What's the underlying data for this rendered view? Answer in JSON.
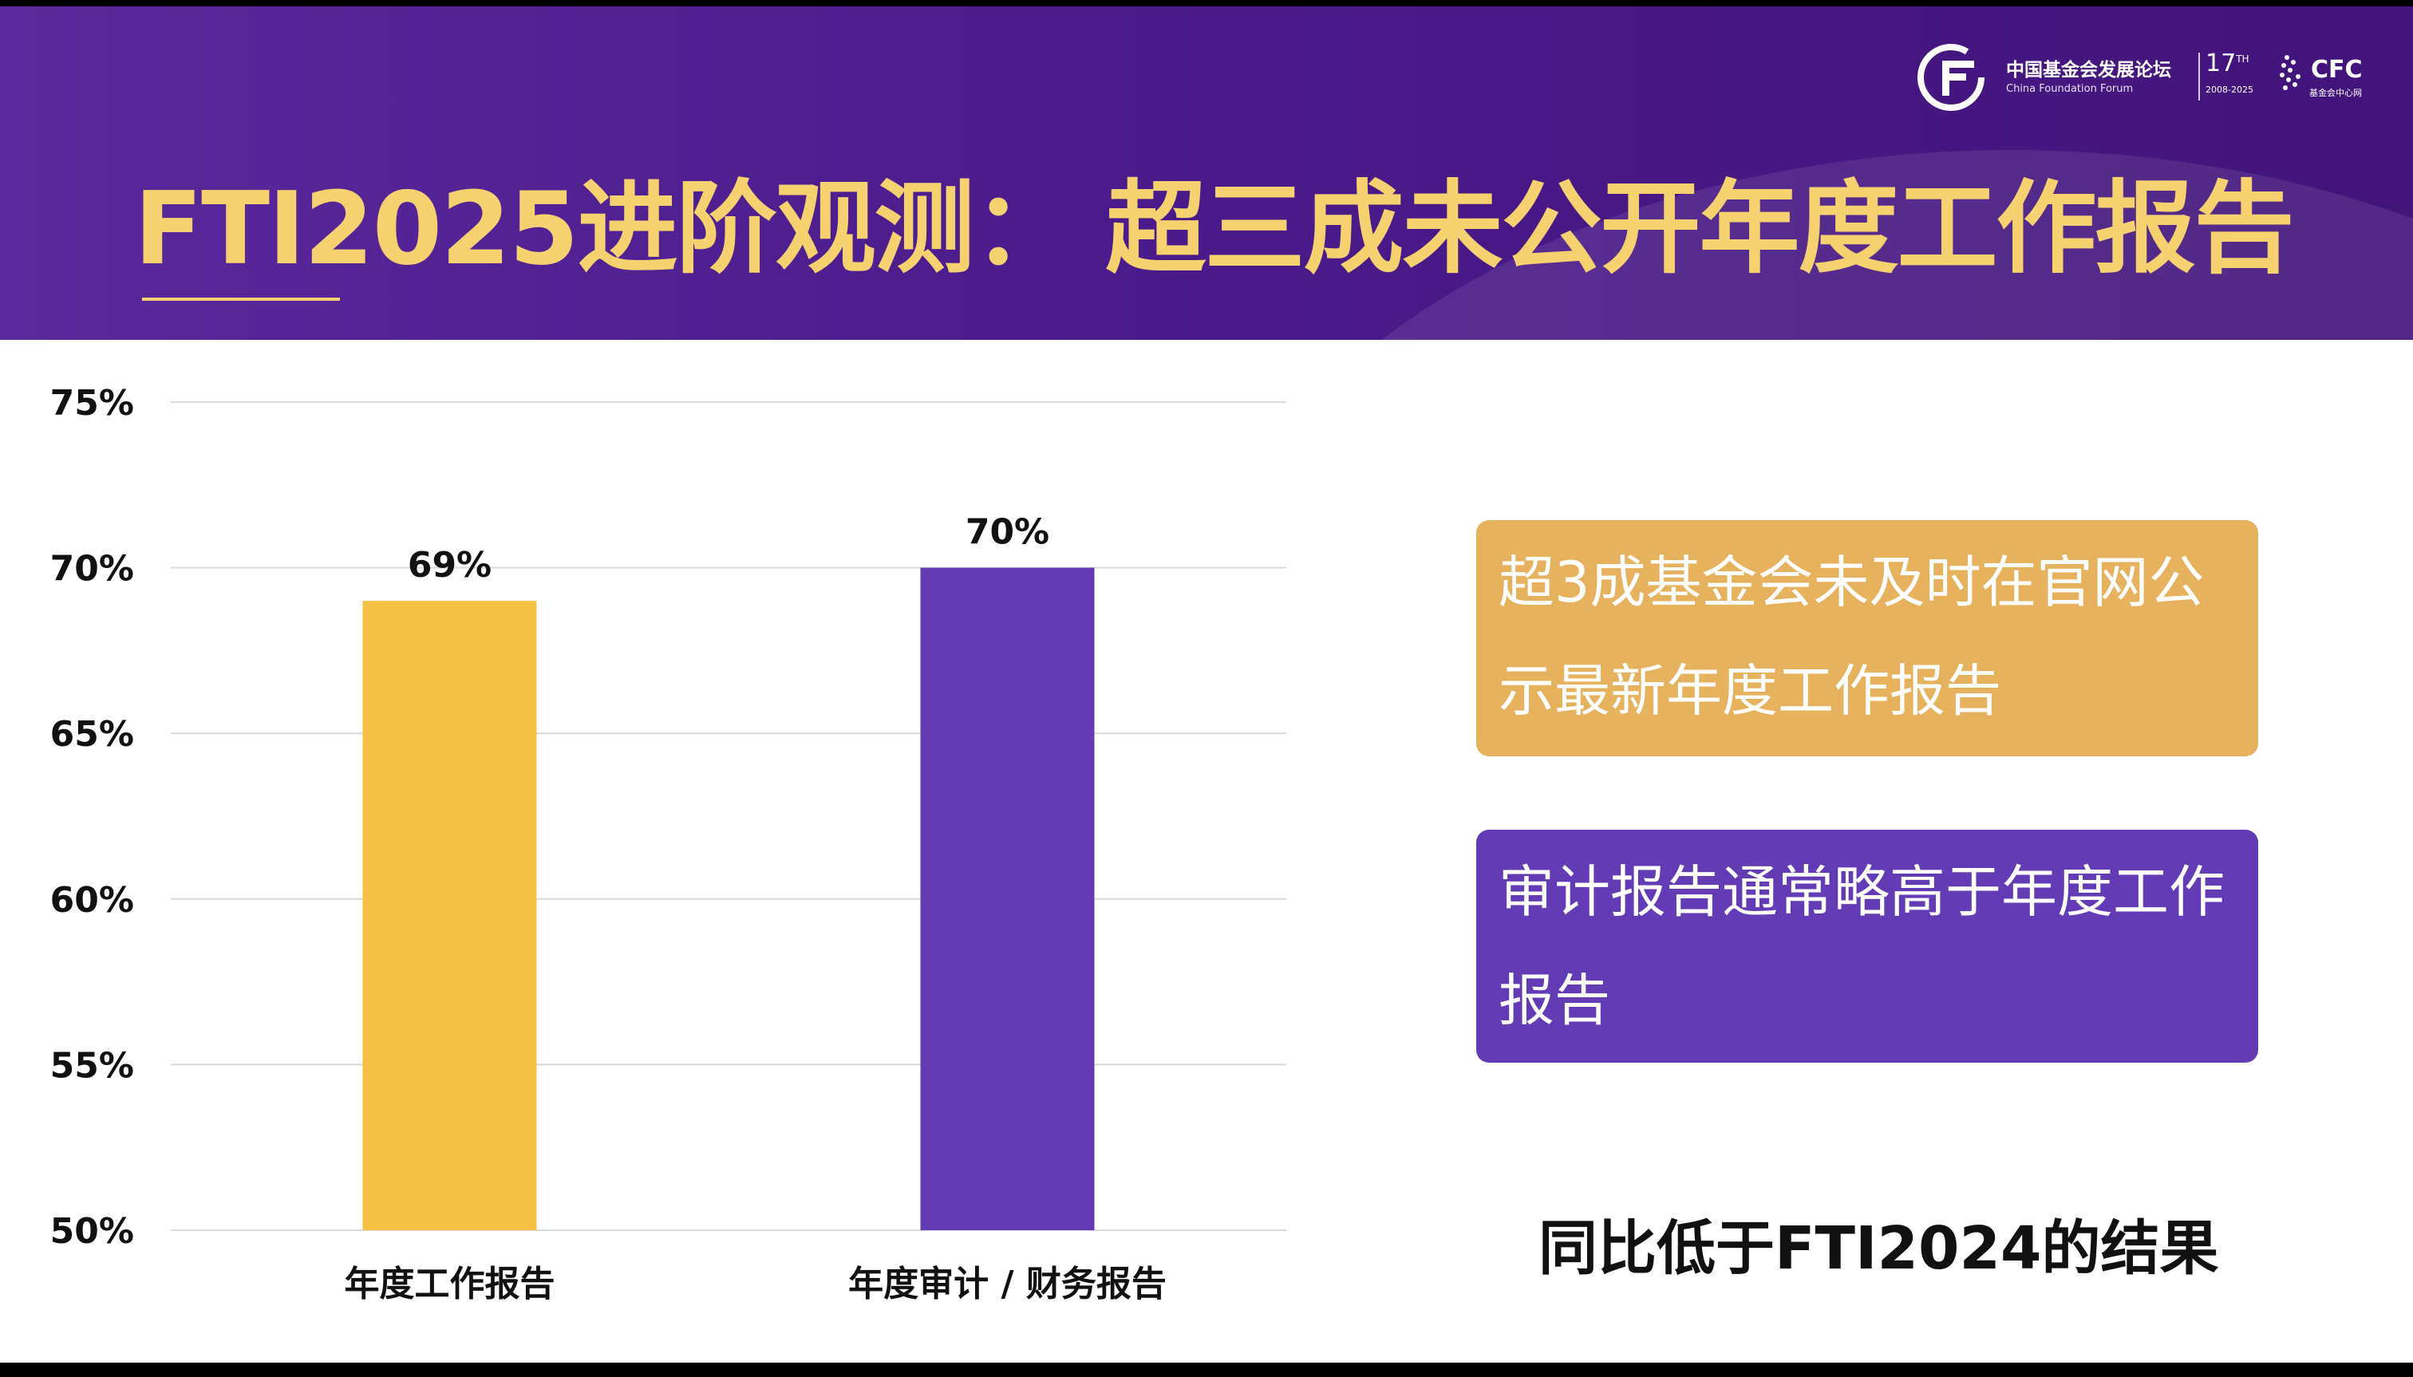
{
  "header": {
    "title": "FTI2025进阶观测：  超三成未公开年度工作报告",
    "logo": {
      "cn_name": "中国基金会发展论坛",
      "en_name": "China Foundation Forum",
      "edition": "17",
      "edition_sup": "TH",
      "years": "2008-2025",
      "cfc": "CFC",
      "cfc_sub": "基金会中心网"
    },
    "accent_color": "#f6d16f"
  },
  "chart_data": {
    "type": "bar",
    "categories": [
      "年度工作报告",
      "年度审计 / 财务报告"
    ],
    "values": [
      69,
      70
    ],
    "data_labels": [
      "69%",
      "70%"
    ],
    "colors": [
      "#f4c142",
      "#633cb5"
    ],
    "ylim": [
      50,
      75
    ],
    "yticks": [
      "50%",
      "55%",
      "60%",
      "65%",
      "70%",
      "75%"
    ],
    "ytick_values": [
      50,
      55,
      60,
      65,
      70,
      75
    ],
    "grid": true,
    "title": "",
    "xlabel": "",
    "ylabel": ""
  },
  "notes": {
    "box1_text": "超3成基金会未及时在官网公示最新年度工作报告",
    "box1_color": "#e7b25d",
    "box2_text": "审计报告通常略高于年度工作报告",
    "box2_color": "#633cb5"
  },
  "conclusion": "同比低于FTI2024的结果"
}
